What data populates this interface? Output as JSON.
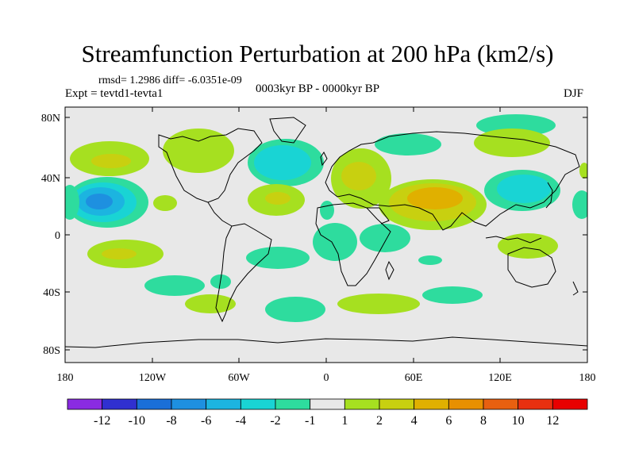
{
  "title": "Streamfunction Perturbation at 200 hPa (km2/s)",
  "stats_text": "rmsd= 1.2986 diff= -6.0351e-09",
  "experiment_text": "Expt = tevtd1-tevta1",
  "period_text": "0003kyr BP - 0000kyr BP",
  "season_text": "DJF",
  "lat_ticks": [
    "80N",
    "40N",
    "0",
    "40S",
    "80S"
  ],
  "lon_ticks": [
    "180",
    "120W",
    "60W",
    "0",
    "60E",
    "120E",
    "180"
  ],
  "colorbar": {
    "labels": [
      "-12",
      "-10",
      "-8",
      "-6",
      "-4",
      "-2",
      "-1",
      "1",
      "2",
      "4",
      "6",
      "8",
      "10",
      "12"
    ],
    "colors": [
      "#8a2be2",
      "#3030d0",
      "#1a6fd8",
      "#1e90e0",
      "#1cb4e0",
      "#19d4d4",
      "#2edc9e",
      "#e8e8e8",
      "#a6e020",
      "#c8d010",
      "#e0b000",
      "#e89000",
      "#e86010",
      "#e83010",
      "#e80000"
    ]
  },
  "colors": {
    "background": "#e8e8e8",
    "coast": "#000000"
  }
}
